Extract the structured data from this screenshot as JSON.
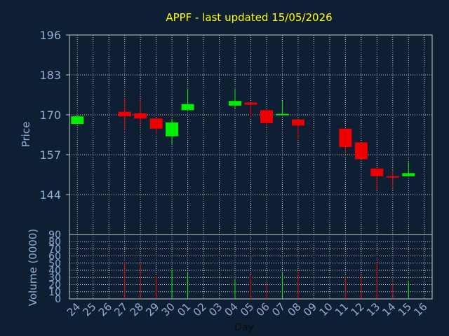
{
  "chart_data": {
    "type": "candlestick",
    "title": "APPF - last updated 15/05/2026",
    "ylabel": "Price",
    "volume_label": "Volume (0000)",
    "xlabel": "Day",
    "ylim": [
      131,
      196
    ],
    "price_ticks": [
      144,
      157,
      170,
      183,
      196
    ],
    "volume_ylim": [
      0,
      90
    ],
    "volume_ticks": [
      0,
      10,
      20,
      30,
      40,
      50,
      60,
      70,
      80,
      90
    ],
    "grid": true,
    "colors": {
      "up": "#00ee00",
      "down": "#ee0000",
      "text": "#8fb0d6",
      "title": "#ffff00",
      "grid": "#c8c8c8",
      "background": "#0f1f33"
    },
    "categories": [
      "24",
      "25",
      "26",
      "27",
      "28",
      "29",
      "30",
      "01",
      "02",
      "03",
      "04",
      "05",
      "06",
      "07",
      "08",
      "09",
      "10",
      "11",
      "12",
      "13",
      "14",
      "15",
      "16"
    ],
    "candles": [
      {
        "day": "24",
        "open": 167.0,
        "close": 169.5,
        "high": 169.5,
        "low": 167.0,
        "volume": 0
      },
      {
        "day": "27",
        "open": 171.0,
        "close": 169.5,
        "high": 175.5,
        "low": 165.0,
        "volume": 52
      },
      {
        "day": "28",
        "open": 170.5,
        "close": 168.8,
        "high": 175.0,
        "low": 166.5,
        "volume": 49
      },
      {
        "day": "29",
        "open": 168.8,
        "close": 165.5,
        "high": 168.8,
        "low": 163.5,
        "volume": 32
      },
      {
        "day": "30",
        "open": 163.0,
        "close": 167.5,
        "high": 168.5,
        "low": 160.5,
        "volume": 40
      },
      {
        "day": "01",
        "open": 171.5,
        "close": 173.5,
        "high": 178.5,
        "low": 171.5,
        "volume": 38
      },
      {
        "day": "04",
        "open": 173.0,
        "close": 174.5,
        "high": 178.5,
        "low": 172.0,
        "volume": 27
      },
      {
        "day": "05",
        "open": 174.0,
        "close": 173.3,
        "high": 174.0,
        "low": 169.0,
        "volume": 33
      },
      {
        "day": "06",
        "open": 171.5,
        "close": 167.3,
        "high": 171.5,
        "low": 166.0,
        "volume": 22
      },
      {
        "day": "07",
        "open": 170.0,
        "close": 170.3,
        "high": 174.5,
        "low": 170.0,
        "volume": 38
      },
      {
        "day": "08",
        "open": 168.5,
        "close": 166.5,
        "high": 168.5,
        "low": 162.0,
        "volume": 38
      },
      {
        "day": "11",
        "open": 165.5,
        "close": 159.5,
        "high": 165.5,
        "low": 157.5,
        "volume": 32
      },
      {
        "day": "12",
        "open": 161.0,
        "close": 155.5,
        "high": 161.0,
        "low": 155.5,
        "volume": 33
      },
      {
        "day": "13",
        "open": 152.5,
        "close": 150.0,
        "high": 152.5,
        "low": 145.5,
        "volume": 50
      },
      {
        "day": "14",
        "open": 150.0,
        "close": 149.8,
        "high": 152.0,
        "low": 146.0,
        "volume": 23
      },
      {
        "day": "15",
        "open": 150.0,
        "close": 151.0,
        "high": 154.5,
        "low": 150.0,
        "volume": 24
      }
    ]
  }
}
